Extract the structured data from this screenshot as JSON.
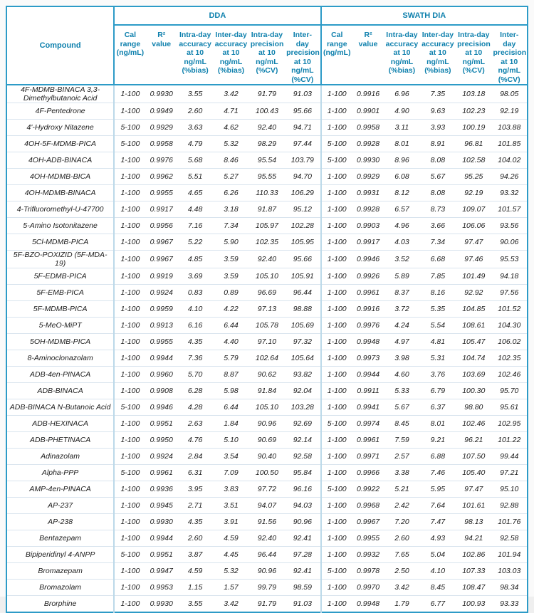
{
  "table": {
    "compound_header": "Compound",
    "groups": [
      {
        "label": "DDA"
      },
      {
        "label": "SWATH DIA"
      }
    ],
    "sub_headers": [
      "Cal range (ng/mL)",
      "R² value",
      "Intra-day accuracy at 10 ng/mL (%bias)",
      "Inter-day accuracy at 10 ng/mL (%bias)",
      "Intra-day precision at 10 ng/mL (%CV)",
      "Inter- day precision at 10 ng/mL (%CV)"
    ],
    "rows": [
      {
        "compound": "4F-MDMB-BINACA 3,3-Dimethylbutanoic Acid",
        "dda": [
          "1-100",
          "0.9930",
          "3.55",
          "3.42",
          "91.79",
          "91.03"
        ],
        "swath": [
          "1-100",
          "0.9916",
          "6.96",
          "7.35",
          "103.18",
          "98.05"
        ]
      },
      {
        "compound": "4F-Pentedrone",
        "dda": [
          "1-100",
          "0.9949",
          "2.60",
          "4.71",
          "100.43",
          "95.66"
        ],
        "swath": [
          "1-100",
          "0.9901",
          "4.90",
          "9.63",
          "102.23",
          "92.19"
        ]
      },
      {
        "compound": "4'-Hydroxy Nitazene",
        "dda": [
          "5-100",
          "0.9929",
          "3.63",
          "4.62",
          "92.40",
          "94.71"
        ],
        "swath": [
          "1-100",
          "0.9958",
          "3.11",
          "3.93",
          "100.19",
          "103.88"
        ]
      },
      {
        "compound": "4OH-5F-MDMB-PICA",
        "dda": [
          "5-100",
          "0.9958",
          "4.79",
          "5.32",
          "98.29",
          "97.44"
        ],
        "swath": [
          "5-100",
          "0.9928",
          "8.01",
          "8.91",
          "96.81",
          "101.85"
        ]
      },
      {
        "compound": "4OH-ADB-BINACA",
        "dda": [
          "1-100",
          "0.9976",
          "5.68",
          "8.46",
          "95.54",
          "103.79"
        ],
        "swath": [
          "5-100",
          "0.9930",
          "8.96",
          "8.08",
          "102.58",
          "104.02"
        ]
      },
      {
        "compound": "4OH-MDMB-BICA",
        "dda": [
          "1-100",
          "0.9962",
          "5.51",
          "5.27",
          "95.55",
          "94.70"
        ],
        "swath": [
          "1-100",
          "0.9929",
          "6.08",
          "5.67",
          "95.25",
          "94.26"
        ]
      },
      {
        "compound": "4OH-MDMB-BINACA",
        "dda": [
          "1-100",
          "0.9955",
          "4.65",
          "6.26",
          "110.33",
          "106.29"
        ],
        "swath": [
          "1-100",
          "0.9931",
          "8.12",
          "8.08",
          "92.19",
          "93.32"
        ]
      },
      {
        "compound": "4-Trifluoromethyl-U-47700",
        "dda": [
          "1-100",
          "0.9917",
          "4.48",
          "3.18",
          "91.87",
          "95.12"
        ],
        "swath": [
          "1-100",
          "0.9928",
          "6.57",
          "8.73",
          "109.07",
          "101.57"
        ]
      },
      {
        "compound": "5-Amino Isotonitazene",
        "dda": [
          "1-100",
          "0.9956",
          "7.16",
          "7.34",
          "105.97",
          "102.28"
        ],
        "swath": [
          "1-100",
          "0.9903",
          "4.96",
          "3.66",
          "106.06",
          "93.56"
        ]
      },
      {
        "compound": "5Cl-MDMB-PICA",
        "dda": [
          "1-100",
          "0.9967",
          "5.22",
          "5.90",
          "102.35",
          "105.95"
        ],
        "swath": [
          "1-100",
          "0.9917",
          "4.03",
          "7.34",
          "97.47",
          "90.06"
        ]
      },
      {
        "compound": "5F-BZO-POXIZID (5F-MDA-19)",
        "dda": [
          "1-100",
          "0.9967",
          "4.85",
          "3.59",
          "92.40",
          "95.66"
        ],
        "swath": [
          "1-100",
          "0.9946",
          "3.52",
          "6.68",
          "97.46",
          "95.53"
        ]
      },
      {
        "compound": "5F-EDMB-PICA",
        "dda": [
          "1-100",
          "0.9919",
          "3.69",
          "3.59",
          "105.10",
          "105.91"
        ],
        "swath": [
          "1-100",
          "0.9926",
          "5.89",
          "7.85",
          "101.49",
          "94.18"
        ]
      },
      {
        "compound": "5F-EMB-PICA",
        "dda": [
          "1-100",
          "0.9924",
          "0.83",
          "0.89",
          "96.69",
          "96.44"
        ],
        "swath": [
          "1-100",
          "0.9961",
          "8.37",
          "8.16",
          "92.92",
          "97.56"
        ]
      },
      {
        "compound": "5F-MDMB-PICA",
        "dda": [
          "1-100",
          "0.9959",
          "4.10",
          "4.22",
          "97.13",
          "98.88"
        ],
        "swath": [
          "1-100",
          "0.9916",
          "3.72",
          "5.35",
          "104.85",
          "101.52"
        ]
      },
      {
        "compound": "5-MeO-MiPT",
        "dda": [
          "1-100",
          "0.9913",
          "6.16",
          "6.44",
          "105.78",
          "105.69"
        ],
        "swath": [
          "1-100",
          "0.9976",
          "4.24",
          "5.54",
          "108.61",
          "104.30"
        ]
      },
      {
        "compound": "5OH-MDMB-PICA",
        "dda": [
          "1-100",
          "0.9955",
          "4.35",
          "4.40",
          "97.10",
          "97.32"
        ],
        "swath": [
          "1-100",
          "0.9948",
          "4.97",
          "4.81",
          "105.47",
          "106.02"
        ]
      },
      {
        "compound": "8-Aminoclonazolam",
        "dda": [
          "1-100",
          "0.9944",
          "7.36",
          "5.79",
          "102.64",
          "105.64"
        ],
        "swath": [
          "1-100",
          "0.9973",
          "3.98",
          "5.31",
          "104.74",
          "102.35"
        ]
      },
      {
        "compound": "ADB-4en-PINACA",
        "dda": [
          "1-100",
          "0.9960",
          "5.70",
          "8.87",
          "90.62",
          "93.82"
        ],
        "swath": [
          "1-100",
          "0.9944",
          "4.60",
          "3.76",
          "103.69",
          "102.46"
        ]
      },
      {
        "compound": "ADB-BINACA",
        "dda": [
          "1-100",
          "0.9908",
          "6.28",
          "5.98",
          "91.84",
          "92.04"
        ],
        "swath": [
          "1-100",
          "0.9911",
          "5.33",
          "6.79",
          "100.30",
          "95.70"
        ]
      },
      {
        "compound": "ADB-BINACA N-Butanoic Acid",
        "dda": [
          "5-100",
          "0.9946",
          "4.28",
          "6.44",
          "105.10",
          "103.28"
        ],
        "swath": [
          "1-100",
          "0.9941",
          "5.67",
          "6.37",
          "98.80",
          "95.61"
        ]
      },
      {
        "compound": "ADB-HEXINACA",
        "dda": [
          "1-100",
          "0.9951",
          "2.63",
          "1.84",
          "90.96",
          "92.69"
        ],
        "swath": [
          "5-100",
          "0.9974",
          "8.45",
          "8.01",
          "102.46",
          "102.95"
        ]
      },
      {
        "compound": "ADB-PHETINACA",
        "dda": [
          "1-100",
          "0.9950",
          "4.76",
          "5.10",
          "90.69",
          "92.14"
        ],
        "swath": [
          "1-100",
          "0.9961",
          "7.59",
          "9.21",
          "96.21",
          "101.22"
        ]
      },
      {
        "compound": "Adinazolam",
        "dda": [
          "1-100",
          "0.9924",
          "2.84",
          "3.54",
          "90.40",
          "92.58"
        ],
        "swath": [
          "1-100",
          "0.9971",
          "2.57",
          "6.88",
          "107.50",
          "99.44"
        ]
      },
      {
        "compound": "Alpha-PPP",
        "dda": [
          "5-100",
          "0.9961",
          "6.31",
          "7.09",
          "100.50",
          "95.84"
        ],
        "swath": [
          "1-100",
          "0.9966",
          "3.38",
          "7.46",
          "105.40",
          "97.21"
        ]
      },
      {
        "compound": "AMP-4en-PINACA",
        "dda": [
          "1-100",
          "0.9936",
          "3.95",
          "3.83",
          "97.72",
          "96.16"
        ],
        "swath": [
          "5-100",
          "0.9922",
          "5.21",
          "5.95",
          "97.47",
          "95.10"
        ]
      },
      {
        "compound": "AP-237",
        "dda": [
          "1-100",
          "0.9945",
          "2.71",
          "3.51",
          "94.07",
          "94.03"
        ],
        "swath": [
          "1-100",
          "0.9968",
          "2.42",
          "7.64",
          "101.61",
          "92.88"
        ]
      },
      {
        "compound": "AP-238",
        "dda": [
          "1-100",
          "0.9930",
          "4.35",
          "3.91",
          "91.56",
          "90.96"
        ],
        "swath": [
          "1-100",
          "0.9967",
          "7.20",
          "7.47",
          "98.13",
          "101.76"
        ]
      },
      {
        "compound": "Bentazepam",
        "dda": [
          "1-100",
          "0.9944",
          "2.60",
          "4.59",
          "92.40",
          "92.41"
        ],
        "swath": [
          "1-100",
          "0.9955",
          "2.60",
          "4.93",
          "94.21",
          "92.58"
        ]
      },
      {
        "compound": "Bipiperidinyl 4-ANPP",
        "dda": [
          "5-100",
          "0.9951",
          "3.87",
          "4.45",
          "96.44",
          "97.28"
        ],
        "swath": [
          "1-100",
          "0.9932",
          "7.65",
          "5.04",
          "102.86",
          "101.94"
        ]
      },
      {
        "compound": "Bromazepam",
        "dda": [
          "1-100",
          "0.9947",
          "4.59",
          "5.32",
          "90.96",
          "92.41"
        ],
        "swath": [
          "5-100",
          "0.9978",
          "2.50",
          "4.10",
          "107.33",
          "103.03"
        ]
      },
      {
        "compound": "Bromazolam",
        "dda": [
          "1-100",
          "0.9953",
          "1.15",
          "1.57",
          "99.79",
          "98.59"
        ],
        "swath": [
          "1-100",
          "0.9970",
          "3.42",
          "8.45",
          "108.47",
          "98.34"
        ]
      },
      {
        "compound": "Brorphine",
        "dda": [
          "1-100",
          "0.9930",
          "3.55",
          "3.42",
          "91.79",
          "91.03"
        ],
        "swath": [
          "1-100",
          "0.9948",
          "1.79",
          "6.77",
          "100.93",
          "93.33"
        ]
      }
    ]
  },
  "colors": {
    "header_text": "#0e80ad",
    "border_strong": "#2d9bc7",
    "border_light": "#bcd9e9",
    "row_separator": "#d9e4ee",
    "data_text": "#1c1c1c"
  }
}
